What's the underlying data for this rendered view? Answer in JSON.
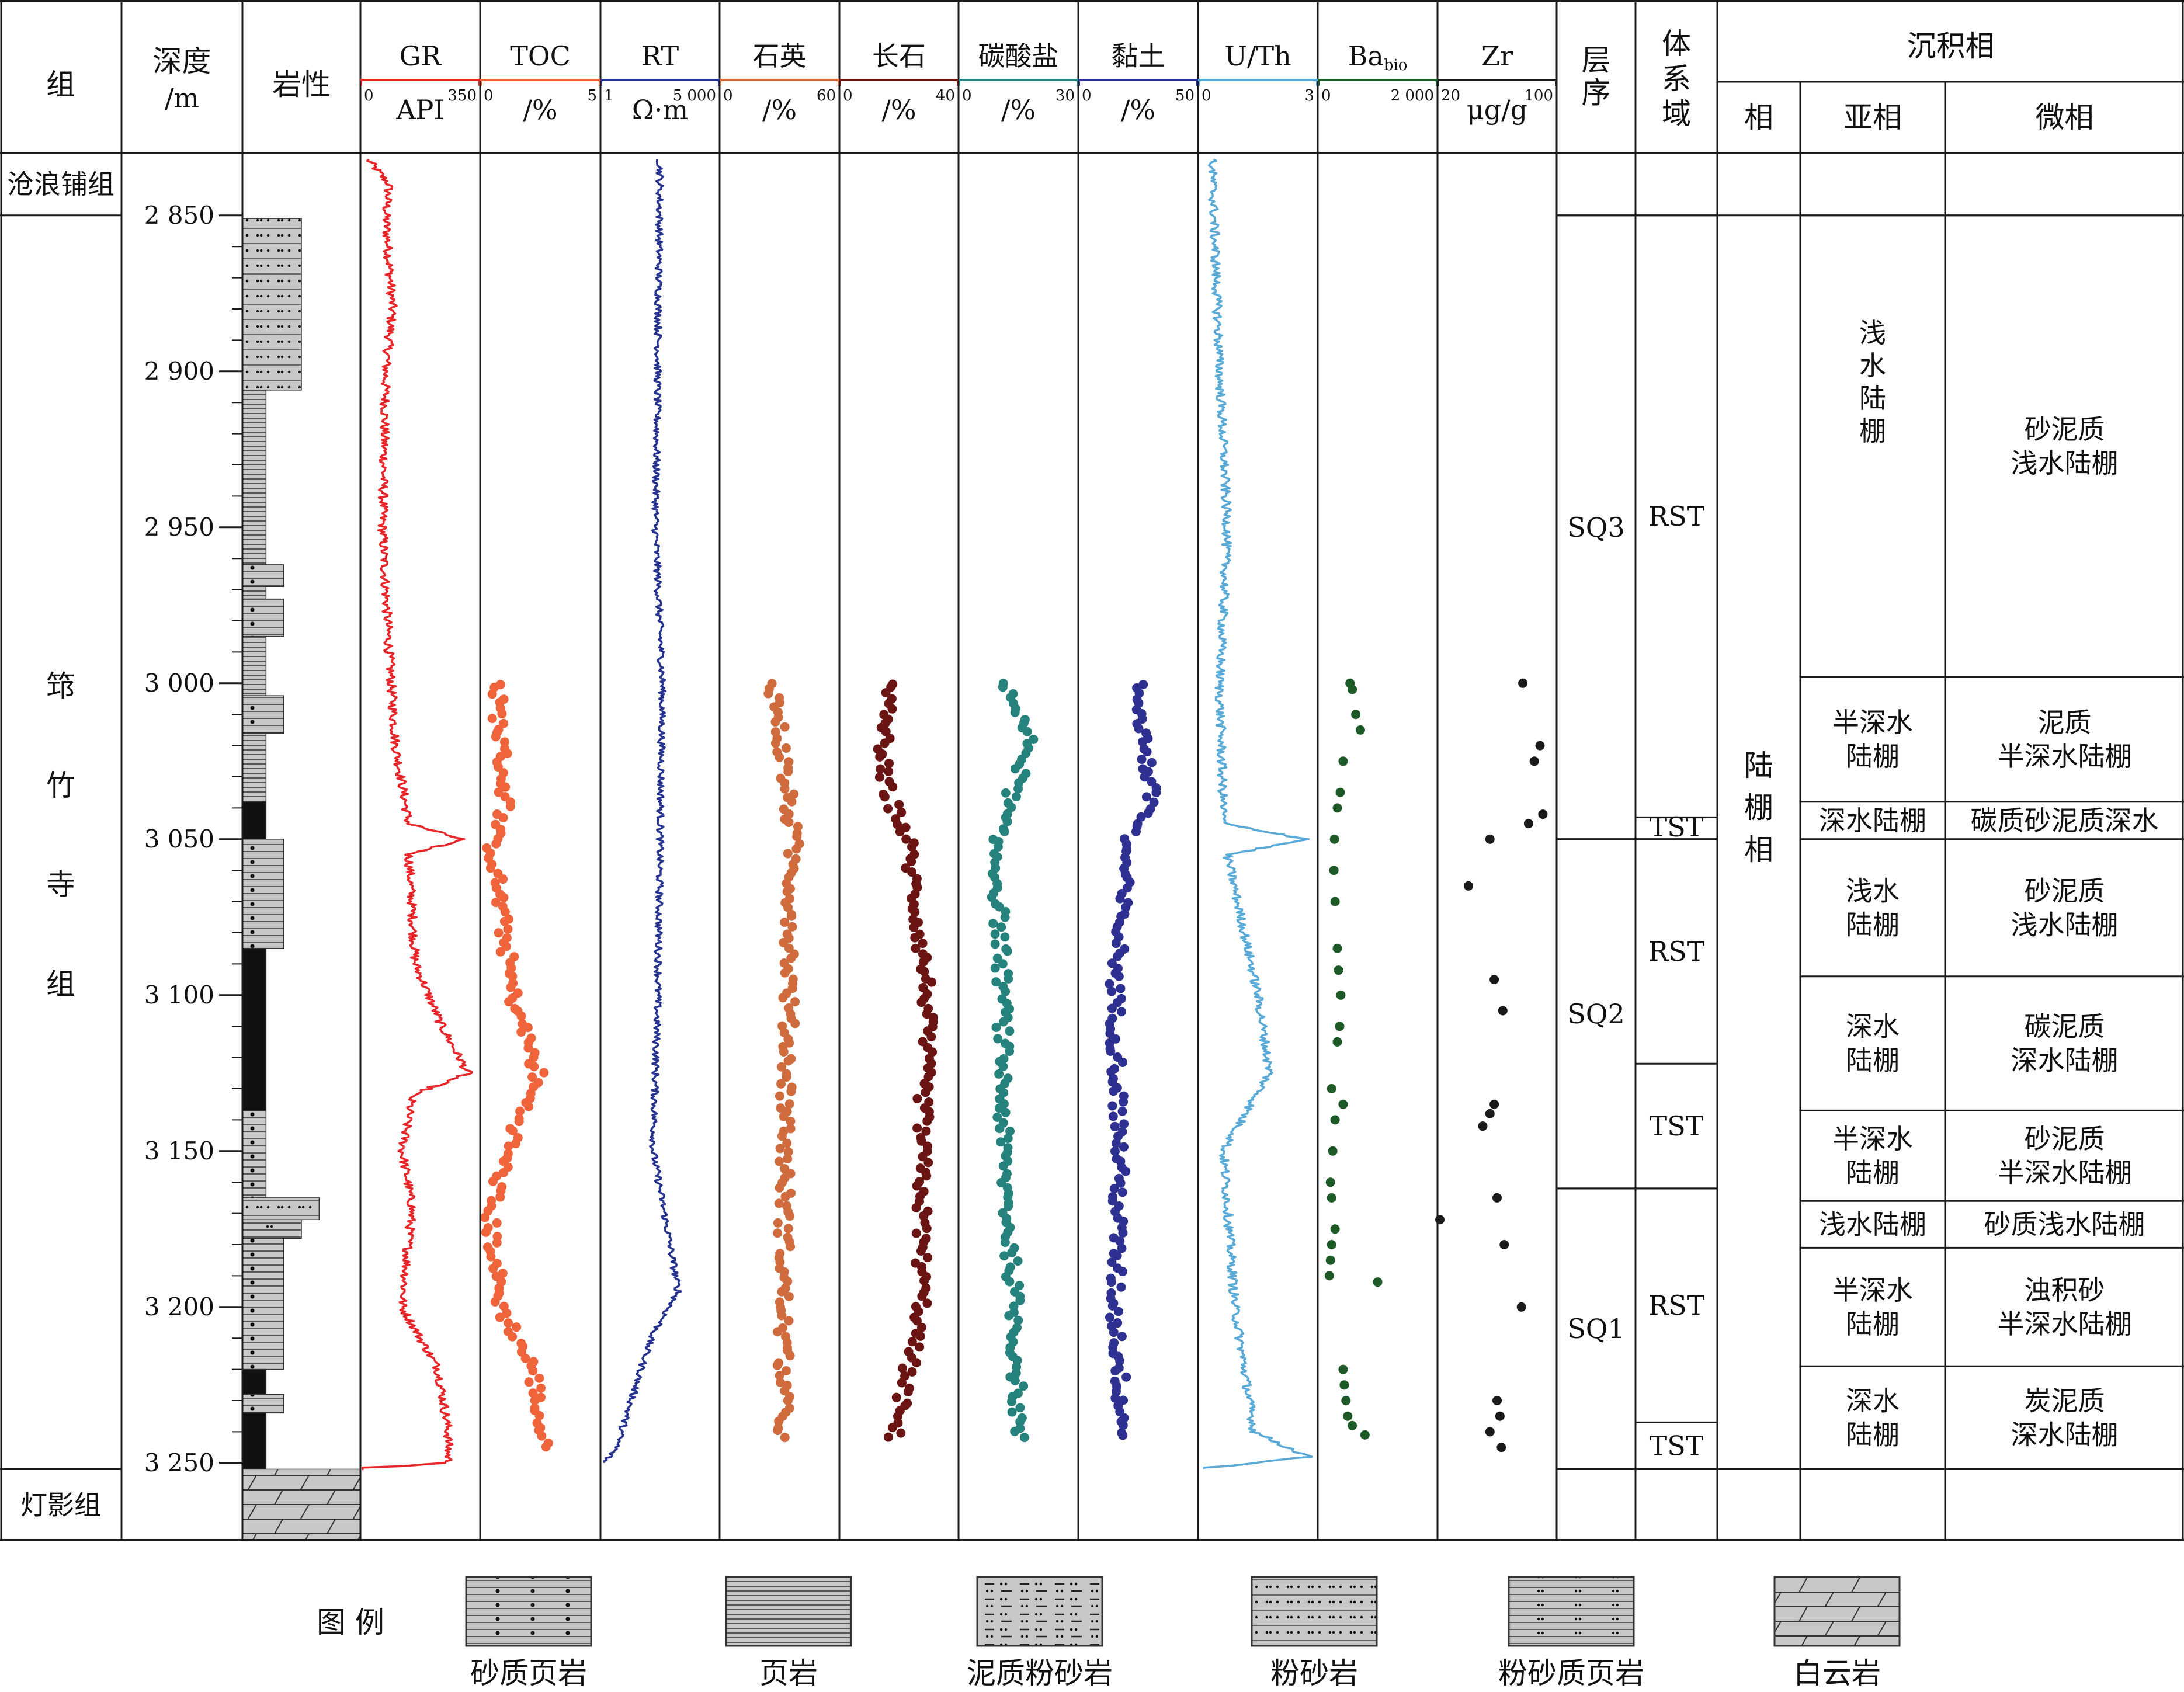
{
  "columns": {
    "group": "组",
    "depth": [
      "深度",
      "/m"
    ],
    "lithology": "岩性",
    "sequence": [
      "层",
      "序"
    ],
    "system_tract": [
      "体",
      "系",
      "域"
    ],
    "sed_facies": "沉积相",
    "facies": "相",
    "subfacies": "亚相",
    "microfacies": "微相"
  },
  "groups": [
    {
      "name": "沧浪铺组",
      "top": 2830,
      "bottom": 2850
    },
    {
      "name": "筇竹寺组",
      "chars": [
        "筇",
        "竹",
        "寺",
        "组"
      ],
      "top": 2850,
      "bottom": 3252
    },
    {
      "name": "灯影组",
      "top": 3252,
      "bottom": 3275
    }
  ],
  "depth_axis": {
    "range": [
      2830,
      3275
    ],
    "ticks": [
      2850,
      2900,
      2950,
      3000,
      3050,
      3100,
      3150,
      3200,
      3250
    ],
    "tick_labels": [
      "2 850",
      "2 900",
      "2 950",
      "3 000",
      "3 050",
      "3 100",
      "3 150",
      "3 200",
      "3 250"
    ]
  },
  "lithology_column": [
    {
      "type": "粉砂岩",
      "top": 2851,
      "bottom": 2906,
      "width": 0.5
    },
    {
      "type": "页岩",
      "top": 2906,
      "bottom": 2962,
      "width": 0.2
    },
    {
      "type": "砂质页岩",
      "top": 2962,
      "bottom": 2969,
      "width": 0.35
    },
    {
      "type": "页岩",
      "top": 2969,
      "bottom": 2973,
      "width": 0.2
    },
    {
      "type": "砂质页岩",
      "top": 2973,
      "bottom": 2985,
      "width": 0.35
    },
    {
      "type": "页岩",
      "top": 2985,
      "bottom": 3004,
      "width": 0.2
    },
    {
      "type": "砂质页岩",
      "top": 3004,
      "bottom": 3016,
      "width": 0.35
    },
    {
      "type": "页岩",
      "top": 3016,
      "bottom": 3038,
      "width": 0.2
    },
    {
      "type": "碳质页岩",
      "top": 3038,
      "bottom": 3050,
      "width": 0.2
    },
    {
      "type": "砂质页岩",
      "top": 3050,
      "bottom": 3085,
      "width": 0.35
    },
    {
      "type": "碳质页岩",
      "top": 3085,
      "bottom": 3137,
      "width": 0.2
    },
    {
      "type": "砂质页岩",
      "top": 3137,
      "bottom": 3165,
      "width": 0.2
    },
    {
      "type": "粉砂岩",
      "top": 3165,
      "bottom": 3172,
      "width": 0.65
    },
    {
      "type": "粉砂质页岩",
      "top": 3172,
      "bottom": 3178,
      "width": 0.5
    },
    {
      "type": "砂质页岩",
      "top": 3178,
      "bottom": 3220,
      "width": 0.35
    },
    {
      "type": "碳质页岩",
      "top": 3220,
      "bottom": 3228,
      "width": 0.2
    },
    {
      "type": "砂质页岩",
      "top": 3228,
      "bottom": 3234,
      "width": 0.35
    },
    {
      "type": "碳质页岩",
      "top": 3234,
      "bottom": 3252,
      "width": 0.2
    },
    {
      "type": "白云岩",
      "top": 3252,
      "bottom": 3275,
      "width": 1.0
    }
  ],
  "chart_data": [
    {
      "type": "line",
      "title": "GR",
      "unit": "API",
      "xlim": [
        0,
        350
      ],
      "tick_labels": [
        "0",
        "350"
      ],
      "color": "#e8262a",
      "anchors": [
        [
          2832,
          15
        ],
        [
          2840,
          80
        ],
        [
          2850,
          70
        ],
        [
          2880,
          90
        ],
        [
          2900,
          70
        ],
        [
          2950,
          60
        ],
        [
          2990,
          80
        ],
        [
          3020,
          100
        ],
        [
          3045,
          140
        ],
        [
          3050,
          300
        ],
        [
          3055,
          140
        ],
        [
          3090,
          160
        ],
        [
          3110,
          240
        ],
        [
          3125,
          320
        ],
        [
          3132,
          150
        ],
        [
          3150,
          120
        ],
        [
          3168,
          150
        ],
        [
          3200,
          120
        ],
        [
          3220,
          230
        ],
        [
          3240,
          260
        ],
        [
          3250,
          260
        ],
        [
          3252,
          0
        ]
      ]
    },
    {
      "type": "scatter",
      "title": "TOC",
      "unit": "/%",
      "xlim": [
        0,
        5
      ],
      "tick_labels": [
        "0",
        "5"
      ],
      "color": "#f0643c",
      "depth_range": [
        3000,
        3245
      ],
      "anchors": [
        [
          3000,
          0.6
        ],
        [
          3040,
          1.0
        ],
        [
          3050,
          0.4
        ],
        [
          3100,
          1.3
        ],
        [
          3125,
          2.4
        ],
        [
          3150,
          1.1
        ],
        [
          3170,
          0.3
        ],
        [
          3200,
          0.8
        ],
        [
          3220,
          2.2
        ],
        [
          3245,
          2.6
        ]
      ]
    },
    {
      "type": "line",
      "title": "RT",
      "unit": "Ω·m",
      "xlim": [
        1,
        5000
      ],
      "tick_labels": [
        "1",
        "5 000"
      ],
      "color": "#26338f",
      "anchors": [
        [
          2832,
          2500
        ],
        [
          2900,
          2400
        ],
        [
          2950,
          2300
        ],
        [
          3000,
          2600
        ],
        [
          3050,
          2500
        ],
        [
          3100,
          2400
        ],
        [
          3150,
          2200
        ],
        [
          3195,
          3300
        ],
        [
          3210,
          2100
        ],
        [
          3245,
          600
        ],
        [
          3250,
          50
        ]
      ]
    },
    {
      "type": "scatter",
      "title": "石英",
      "unit": "/%",
      "xlim": [
        0,
        60
      ],
      "tick_labels": [
        "0",
        "60"
      ],
      "color": "#cf6b3c",
      "depth_range": [
        3000,
        3242
      ],
      "anchors": [
        [
          3000,
          27
        ],
        [
          3050,
          37
        ],
        [
          3100,
          35
        ],
        [
          3150,
          33
        ],
        [
          3200,
          32
        ],
        [
          3242,
          32
        ]
      ]
    },
    {
      "type": "scatter",
      "title": "长石",
      "unit": "/%",
      "xlim": [
        0,
        40
      ],
      "tick_labels": [
        "0",
        "40"
      ],
      "color": "#6b1414",
      "depth_range": [
        3000,
        3242
      ],
      "anchors": [
        [
          3000,
          16
        ],
        [
          3030,
          14
        ],
        [
          3050,
          23
        ],
        [
          3100,
          30
        ],
        [
          3150,
          28
        ],
        [
          3200,
          28
        ],
        [
          3242,
          18
        ]
      ]
    },
    {
      "type": "scatter",
      "title": "碳酸盐",
      "unit": "/%",
      "xlim": [
        0,
        30
      ],
      "tick_labels": [
        "0",
        "30"
      ],
      "color": "#25827c",
      "depth_range": [
        3000,
        3242
      ],
      "anchors": [
        [
          3000,
          12
        ],
        [
          3020,
          18
        ],
        [
          3050,
          9
        ],
        [
          3100,
          11
        ],
        [
          3150,
          11
        ],
        [
          3200,
          14
        ],
        [
          3242,
          15
        ]
      ]
    },
    {
      "type": "scatter",
      "title": "黏土",
      "unit": "/%",
      "xlim": [
        0,
        50
      ],
      "tick_labels": [
        "0",
        "50"
      ],
      "color": "#2e3192",
      "depth_range": [
        3000,
        3242
      ],
      "anchors": [
        [
          3000,
          25
        ],
        [
          3040,
          31
        ],
        [
          3050,
          20
        ],
        [
          3100,
          15
        ],
        [
          3150,
          17
        ],
        [
          3200,
          15
        ],
        [
          3242,
          19
        ]
      ]
    },
    {
      "type": "line",
      "title": "U/Th",
      "unit": "",
      "xlim": [
        0,
        3
      ],
      "tick_labels": [
        "0",
        "3"
      ],
      "color": "#5aaad7",
      "anchors": [
        [
          2832,
          0.3
        ],
        [
          2900,
          0.5
        ],
        [
          2950,
          0.7
        ],
        [
          3000,
          0.5
        ],
        [
          3045,
          0.6
        ],
        [
          3050,
          2.8
        ],
        [
          3055,
          0.7
        ],
        [
          3100,
          1.5
        ],
        [
          3125,
          1.8
        ],
        [
          3150,
          0.6
        ],
        [
          3200,
          0.9
        ],
        [
          3240,
          1.4
        ],
        [
          3248,
          2.8
        ],
        [
          3252,
          0.1
        ]
      ]
    },
    {
      "type": "scatter",
      "title": "Ba",
      "title_sub": "bio",
      "unit": "",
      "xlim": [
        0,
        2000
      ],
      "tick_labels": [
        "0",
        "2 000"
      ],
      "color": "#1e5a28",
      "points": [
        [
          3000,
          520
        ],
        [
          3002,
          560
        ],
        [
          3010,
          620
        ],
        [
          3015,
          700
        ],
        [
          3025,
          400
        ],
        [
          3035,
          350
        ],
        [
          3040,
          300
        ],
        [
          3050,
          250
        ],
        [
          3060,
          240
        ],
        [
          3070,
          260
        ],
        [
          3085,
          300
        ],
        [
          3092,
          320
        ],
        [
          3100,
          360
        ],
        [
          3110,
          340
        ],
        [
          3115,
          300
        ],
        [
          3130,
          200
        ],
        [
          3135,
          400
        ],
        [
          3140,
          260
        ],
        [
          3150,
          220
        ],
        [
          3160,
          180
        ],
        [
          3165,
          200
        ],
        [
          3175,
          260
        ],
        [
          3180,
          200
        ],
        [
          3185,
          180
        ],
        [
          3190,
          160
        ],
        [
          3192,
          1000
        ],
        [
          3220,
          400
        ],
        [
          3225,
          420
        ],
        [
          3230,
          450
        ],
        [
          3235,
          480
        ],
        [
          3238,
          560
        ],
        [
          3241,
          780
        ]
      ]
    },
    {
      "type": "scatter",
      "title": "Zr",
      "unit": "μg/g",
      "xlim": [
        20,
        100
      ],
      "tick_labels": [
        "20",
        "100"
      ],
      "color": "#1a1a1a",
      "points": [
        [
          3000,
          78
        ],
        [
          3020,
          90
        ],
        [
          3025,
          86
        ],
        [
          3042,
          92
        ],
        [
          3045,
          82
        ],
        [
          3050,
          55
        ],
        [
          3065,
          40
        ],
        [
          3095,
          58
        ],
        [
          3105,
          64
        ],
        [
          3135,
          58
        ],
        [
          3138,
          55
        ],
        [
          3142,
          50
        ],
        [
          3165,
          60
        ],
        [
          3172,
          20
        ],
        [
          3180,
          65
        ],
        [
          3200,
          77
        ],
        [
          3230,
          60
        ],
        [
          3235,
          62
        ],
        [
          3240,
          55
        ],
        [
          3245,
          63
        ]
      ]
    }
  ],
  "sequence": [
    {
      "label": "SQ3",
      "top": 2850,
      "bottom": 3050
    },
    {
      "label": "SQ2",
      "top": 3050,
      "bottom": 3162
    },
    {
      "label": "SQ1",
      "top": 3162,
      "bottom": 3252
    }
  ],
  "system_tract": [
    {
      "label": "RST",
      "top": 2850,
      "bottom": 3043
    },
    {
      "label": "TST",
      "top": 3043,
      "bottom": 3050
    },
    {
      "label": "RST",
      "top": 3050,
      "bottom": 3122
    },
    {
      "label": "TST",
      "top": 3122,
      "bottom": 3162
    },
    {
      "label": "RST",
      "top": 3162,
      "bottom": 3237
    },
    {
      "label": "TST",
      "top": 3237,
      "bottom": 3252
    }
  ],
  "facies": {
    "label": "陆棚相",
    "chars": [
      "陆",
      "棚",
      "相"
    ],
    "top": 2850,
    "bottom": 3252
  },
  "subfacies": [
    {
      "label": "浅水陆棚",
      "vertical": true,
      "lines": [
        "浅",
        "水",
        "陆",
        "棚"
      ],
      "top": 2850,
      "bottom": 2998
    },
    {
      "label": "半深水陆棚",
      "lines": [
        "半深水",
        "陆棚"
      ],
      "top": 2998,
      "bottom": 3038
    },
    {
      "label": "深水陆棚",
      "lines": [
        "深水陆棚"
      ],
      "top": 3038,
      "bottom": 3050
    },
    {
      "label": "浅水陆棚",
      "lines": [
        "浅水",
        "陆棚"
      ],
      "top": 3050,
      "bottom": 3094
    },
    {
      "label": "深水陆棚",
      "lines": [
        "深水",
        "陆棚"
      ],
      "top": 3094,
      "bottom": 3137
    },
    {
      "label": "半深水陆棚",
      "lines": [
        "半深水",
        "陆棚"
      ],
      "top": 3137,
      "bottom": 3166
    },
    {
      "label": "浅水陆棚",
      "lines": [
        "浅水陆棚"
      ],
      "top": 3166,
      "bottom": 3181
    },
    {
      "label": "半深水陆棚",
      "lines": [
        "半深水",
        "陆棚"
      ],
      "top": 3181,
      "bottom": 3219
    },
    {
      "label": "深水陆棚",
      "lines": [
        "深水",
        "陆棚"
      ],
      "top": 3219,
      "bottom": 3252
    }
  ],
  "microfacies": [
    {
      "label": "砂泥质浅水陆棚",
      "lines": [
        "砂泥质",
        "浅水陆棚"
      ],
      "top": 2850,
      "bottom": 2998
    },
    {
      "label": "泥质半深水陆棚",
      "lines": [
        "泥质",
        "半深水陆棚"
      ],
      "top": 2998,
      "bottom": 3038
    },
    {
      "label": "碳质砂泥质深水",
      "lines": [
        "碳质砂泥质深水"
      ],
      "top": 3038,
      "bottom": 3050
    },
    {
      "label": "砂泥质浅水陆棚",
      "lines": [
        "砂泥质",
        "浅水陆棚"
      ],
      "top": 3050,
      "bottom": 3094
    },
    {
      "label": "碳泥质深水陆棚",
      "lines": [
        "碳泥质",
        "深水陆棚"
      ],
      "top": 3094,
      "bottom": 3137
    },
    {
      "label": "砂泥质半深水陆棚",
      "lines": [
        "砂泥质",
        "半深水陆棚"
      ],
      "top": 3137,
      "bottom": 3166
    },
    {
      "label": "砂质浅水陆棚",
      "lines": [
        "砂质浅水陆棚"
      ],
      "top": 3166,
      "bottom": 3181
    },
    {
      "label": "浊积砂半深水陆棚",
      "lines": [
        "浊积砂",
        "半深水陆棚"
      ],
      "top": 3181,
      "bottom": 3219
    },
    {
      "label": "炭泥质深水陆棚",
      "lines": [
        "炭泥质",
        "深水陆棚"
      ],
      "top": 3219,
      "bottom": 3252
    }
  ],
  "legend": {
    "title": "图  例",
    "items": [
      {
        "label": "砂质页岩",
        "pattern": "sandy-shale"
      },
      {
        "label": "页岩",
        "pattern": "shale"
      },
      {
        "label": "泥质粉砂岩",
        "pattern": "muddy-siltstone"
      },
      {
        "label": "粉砂岩",
        "pattern": "siltstone"
      },
      {
        "label": "粉砂质页岩",
        "pattern": "silty-shale"
      },
      {
        "label": "白云岩",
        "pattern": "dolomite"
      }
    ]
  },
  "colors": {
    "frame": "#1a1a1a",
    "lith_fill": "#c8c8c8",
    "carbon_shale": "#1a1a1a",
    "shale_dark": "#505050"
  }
}
